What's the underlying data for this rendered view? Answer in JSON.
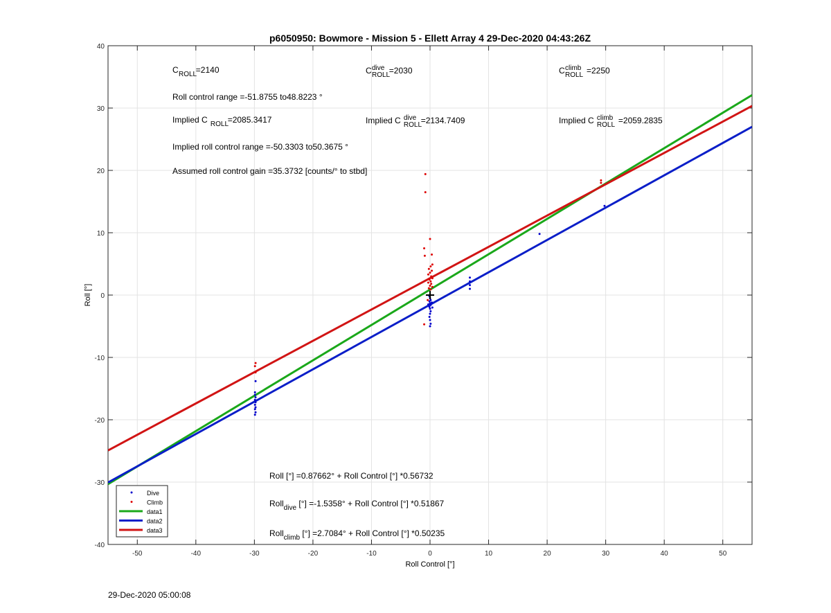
{
  "colors": {
    "dive": "#0000cc",
    "climb": "#dd0000",
    "data1": "#1aa81a",
    "data2": "#0a1ec8",
    "data3": "#d11414",
    "cross": "#000000"
  },
  "chart_data": {
    "type": "scatter",
    "title": "p6050950: Bowmore - Mission 5 - Ellett Array 4 29-Dec-2020 04:43:26Z",
    "xlabel": "Roll Control [°]",
    "ylabel": "Roll [°]",
    "xlim": [
      -55,
      55
    ],
    "ylim": [
      -40,
      40
    ],
    "xticks": [
      -50,
      -40,
      -30,
      -20,
      -10,
      0,
      10,
      20,
      30,
      40,
      50
    ],
    "yticks": [
      -40,
      -30,
      -20,
      -10,
      0,
      10,
      20,
      30,
      40
    ],
    "grid": true,
    "legend_position": "bottom-left",
    "legend": [
      "Dive",
      "Climb",
      "data1",
      "data2",
      "data3"
    ],
    "series": [
      {
        "name": "Dive",
        "kind": "points",
        "color_key": "dive",
        "points": [
          [
            -29.8,
            -13.8
          ],
          [
            -29.9,
            -15.6
          ],
          [
            -29.9,
            -16.0
          ],
          [
            -29.8,
            -16.4
          ],
          [
            -29.9,
            -16.8
          ],
          [
            -29.8,
            -17.2
          ],
          [
            -29.9,
            -17.6
          ],
          [
            -29.8,
            -18.0
          ],
          [
            -29.9,
            -18.3
          ],
          [
            -29.8,
            -18.8
          ],
          [
            -29.9,
            -19.2
          ],
          [
            -0.1,
            -0.2
          ],
          [
            0.0,
            -0.5
          ],
          [
            0.1,
            -0.8
          ],
          [
            -0.1,
            -1.0
          ],
          [
            0.0,
            -1.3
          ],
          [
            0.1,
            -1.6
          ],
          [
            -0.1,
            -1.9
          ],
          [
            0.0,
            -2.2
          ],
          [
            0.1,
            -2.6
          ],
          [
            0.0,
            -3.0
          ],
          [
            -0.1,
            -3.5
          ],
          [
            0.0,
            -4.0
          ],
          [
            0.1,
            -4.6
          ],
          [
            0.0,
            -5.0
          ],
          [
            0.3,
            -1.2
          ],
          [
            0.4,
            -2.0
          ],
          [
            -0.3,
            -1.5
          ],
          [
            6.8,
            1.0
          ],
          [
            6.8,
            1.6
          ],
          [
            6.8,
            2.2
          ],
          [
            6.8,
            2.8
          ],
          [
            18.7,
            9.8
          ],
          [
            29.8,
            14.3
          ]
        ]
      },
      {
        "name": "Climb",
        "kind": "points",
        "color_key": "climb",
        "points": [
          [
            -29.8,
            -10.9
          ],
          [
            -29.9,
            -11.4
          ],
          [
            -29.8,
            -12.4
          ],
          [
            -0.8,
            19.4
          ],
          [
            -0.8,
            16.5
          ],
          [
            0.0,
            9.0
          ],
          [
            -1.0,
            7.5
          ],
          [
            -0.9,
            6.3
          ],
          [
            0.3,
            6.5
          ],
          [
            0.4,
            4.9
          ],
          [
            0.1,
            4.6
          ],
          [
            -0.2,
            4.2
          ],
          [
            0.3,
            3.9
          ],
          [
            0.0,
            3.6
          ],
          [
            -0.3,
            3.3
          ],
          [
            0.2,
            3.0
          ],
          [
            0.4,
            2.7
          ],
          [
            -0.1,
            2.5
          ],
          [
            0.1,
            2.2
          ],
          [
            -0.3,
            2.0
          ],
          [
            0.2,
            1.8
          ],
          [
            0.0,
            1.5
          ],
          [
            0.4,
            1.3
          ],
          [
            -0.2,
            1.1
          ],
          [
            0.1,
            0.9
          ],
          [
            -0.4,
            -0.8
          ],
          [
            -1.0,
            -4.7
          ],
          [
            29.2,
            18.0
          ],
          [
            29.2,
            18.4
          ]
        ]
      },
      {
        "name": "data1",
        "kind": "line",
        "color_key": "data1",
        "intercept": 0.87662,
        "slope": 0.56732
      },
      {
        "name": "data2",
        "kind": "line",
        "color_key": "data2",
        "intercept": -1.5358,
        "slope": 0.51867
      },
      {
        "name": "data3",
        "kind": "line",
        "color_key": "data3",
        "intercept": 2.7084,
        "slope": 0.50235
      }
    ],
    "cross_marker": [
      0.0,
      0.0
    ],
    "annotations": {
      "c_roll": {
        "base": "C",
        "sub": "ROLL",
        "value": "=2140"
      },
      "c_dive": {
        "base": "C",
        "sub": "ROLL",
        "sup": "dive",
        "value": " =2030"
      },
      "c_climb": {
        "base": "C",
        "sub": "ROLL",
        "sup": "climb",
        "value": " =2250"
      },
      "range": "Roll control range =-51.8755 to48.8223 °",
      "implied_c": {
        "prefix": "Implied C",
        "sub": "ROLL",
        "value": " =2085.3417"
      },
      "implied_dive": {
        "prefix": "Implied C",
        "sub": "ROLL",
        "sup": "dive",
        "value": " =2134.7409"
      },
      "implied_climb": {
        "prefix": "Implied C",
        "sub": "ROLL",
        "sup": "climb",
        "value": " =2059.2835"
      },
      "implied_range": "Implied roll control range =-50.3303 to50.3675 °",
      "gain": "Assumed roll control gain =35.3732 [counts/° to stbd]",
      "eq_all": "Roll [°] =0.87662° + Roll Control [°] *0.56732",
      "eq_dive": {
        "base": "Roll",
        "sub": "dive",
        "rest": " [°] =-1.5358° + Roll Control [°] *0.51867"
      },
      "eq_climb": {
        "base": "Roll",
        "sub": "climb",
        "rest": " [°] =2.7084° + Roll Control [°] *0.50235"
      }
    }
  },
  "footer": {
    "timestamp": "29-Dec-2020 05:00:08"
  }
}
